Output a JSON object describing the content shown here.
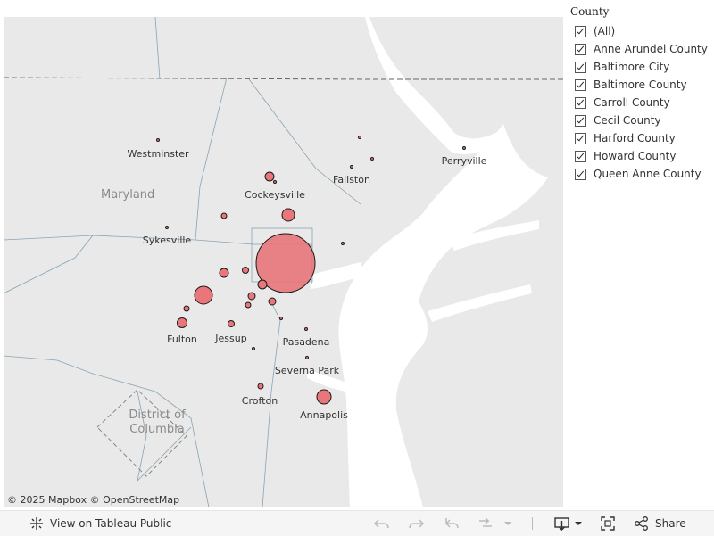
{
  "map": {
    "region_labels": {
      "state": "Maryland",
      "dc": "District of\nColumbia"
    },
    "cities": {
      "westminster": "Westminster",
      "cockeysville": "Cockeysville",
      "fallston": "Fallston",
      "perryville": "Perryville",
      "sykesville": "Sykesville",
      "fulton": "Fulton",
      "jessup": "Jessup",
      "pasadena": "Pasadena",
      "severna_park": "Severna Park",
      "crofton": "Crofton",
      "annapolis": "Annapolis"
    },
    "attribution": "© 2025 Mapbox  © OpenStreetMap",
    "marker_color": "#e8767a"
  },
  "legend": {
    "title": "County",
    "items": [
      "(All)",
      "Anne Arundel County",
      "Baltimore City",
      "Baltimore County",
      "Carroll County",
      "Cecil County",
      "Harford County",
      "Howard County",
      "Queen Anne County"
    ]
  },
  "toolbar": {
    "view_on_tableau": "View on Tableau Public",
    "share": "Share"
  }
}
